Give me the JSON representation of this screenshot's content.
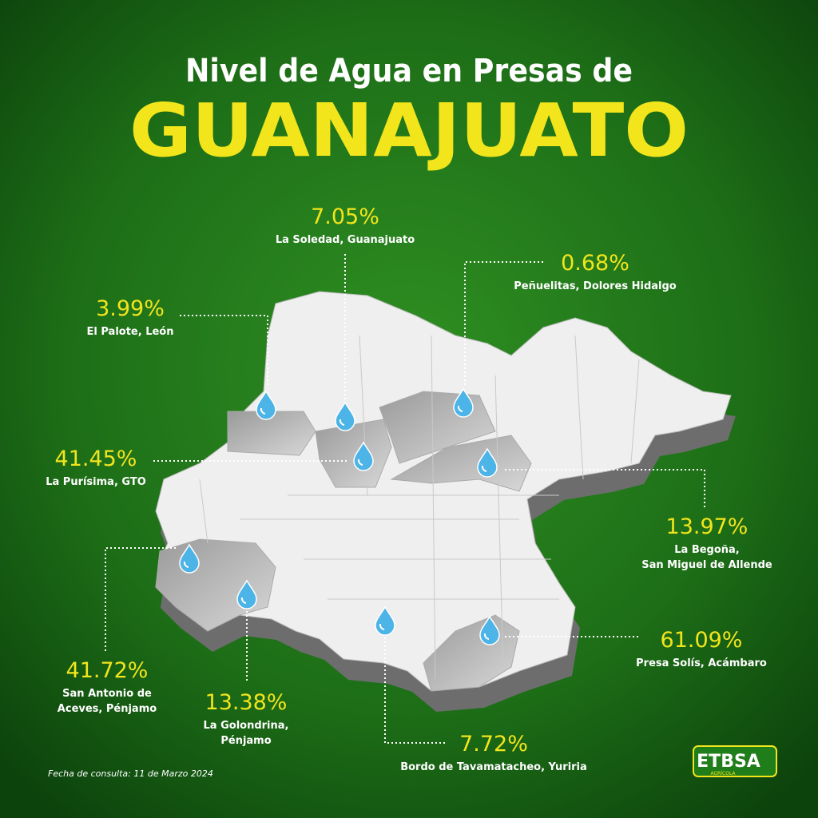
{
  "title": "Nivel de Agua en Presas de",
  "state": "GUANAJUATO",
  "dams": [
    {
      "level": "7.05%",
      "name_lines": [
        "La Soledad, Guanajuato"
      ]
    },
    {
      "level": "0.68%",
      "name_lines": [
        "Peñuelitas, Dolores Hidalgo"
      ]
    },
    {
      "level": "3.99%",
      "name_lines": [
        "El Palote, León"
      ]
    },
    {
      "level": "41.45%",
      "name_lines": [
        "La Purísima, GTO"
      ]
    },
    {
      "level": "13.97%",
      "name_lines": [
        "La Begoña,",
        "San Miguel de Allende"
      ]
    },
    {
      "level": "61.09%",
      "name_lines": [
        "Presa Solís, Acámbaro"
      ]
    },
    {
      "level": "41.72%",
      "name_lines": [
        "San Antonio de",
        "Aceves, Pénjamo"
      ]
    },
    {
      "level": "13.38%",
      "name_lines": [
        "La Golondrina,",
        "Pénjamo"
      ]
    },
    {
      "level": "7.72%",
      "name_lines": [
        "Bordo de Tavamatacheo, Yuriria"
      ]
    }
  ],
  "footer": "Fecha de consulta: 11 de Marzo 2024",
  "logo": {
    "brand": "ETBSA",
    "sub": "AGRÍCOLA"
  }
}
